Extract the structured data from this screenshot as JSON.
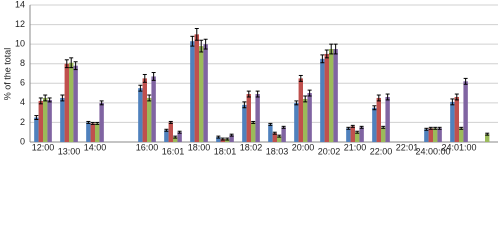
{
  "chart_data": {
    "type": "bar",
    "y_label": "% of the total",
    "categories": [
      "12:00",
      "13:00",
      "14:00",
      null,
      "16:00",
      "16:01",
      "18:00",
      "18:01",
      "18:02",
      "18:03",
      "20:00",
      "20:02",
      "21:00",
      "22:00",
      "22:01",
      "24:00:00",
      "24:01:00",
      null
    ],
    "series": [
      {
        "color": "#4f81bd",
        "values": [
          2.5,
          4.5,
          2.0,
          null,
          5.5,
          1.2,
          10.3,
          0.5,
          3.8,
          1.8,
          4.0,
          8.5,
          1.4,
          3.5,
          0,
          1.3,
          4.1,
          null
        ],
        "errors": [
          0.2,
          0.3,
          0.1,
          null,
          0.3,
          0.1,
          0.5,
          0.1,
          0.3,
          0.1,
          0.2,
          0.4,
          0.1,
          0.2,
          0,
          0.1,
          0.3,
          null
        ]
      },
      {
        "color": "#c0504d",
        "values": [
          4.2,
          8.0,
          1.9,
          null,
          6.5,
          2.0,
          11.0,
          0.3,
          4.9,
          0.9,
          6.5,
          9.0,
          1.6,
          4.5,
          0,
          1.4,
          4.6,
          null
        ],
        "errors": [
          0.3,
          0.4,
          0.1,
          null,
          0.4,
          0.1,
          0.6,
          0.1,
          0.3,
          0.1,
          0.3,
          0.4,
          0.1,
          0.3,
          0,
          0.1,
          0.3,
          null
        ]
      },
      {
        "color": "#9bbb59",
        "values": [
          4.5,
          8.1,
          1.9,
          null,
          4.5,
          0.5,
          9.8,
          0.3,
          2.0,
          0.6,
          4.4,
          9.5,
          1.0,
          1.5,
          0,
          1.4,
          1.4,
          0.8
        ],
        "errors": [
          0.3,
          0.5,
          0.1,
          null,
          0.3,
          0.1,
          0.6,
          0.1,
          0.1,
          0.1,
          0.3,
          0.5,
          0.1,
          0.1,
          0,
          0.1,
          0.1,
          0.1
        ]
      },
      {
        "color": "#8064a2",
        "values": [
          4.3,
          7.8,
          4.0,
          null,
          6.7,
          1.0,
          10.0,
          0.7,
          4.9,
          1.5,
          5.0,
          9.5,
          1.5,
          4.6,
          0,
          1.4,
          6.2,
          null
        ],
        "errors": [
          0.2,
          0.4,
          0.2,
          null,
          0.4,
          0.1,
          0.5,
          0.1,
          0.3,
          0.1,
          0.3,
          0.5,
          0.1,
          0.3,
          0,
          0.1,
          0.3,
          null
        ]
      }
    ],
    "ylim": [
      0,
      14
    ],
    "yticks": [
      0,
      2,
      4,
      6,
      8,
      10,
      12,
      14
    ],
    "grid": true
  }
}
